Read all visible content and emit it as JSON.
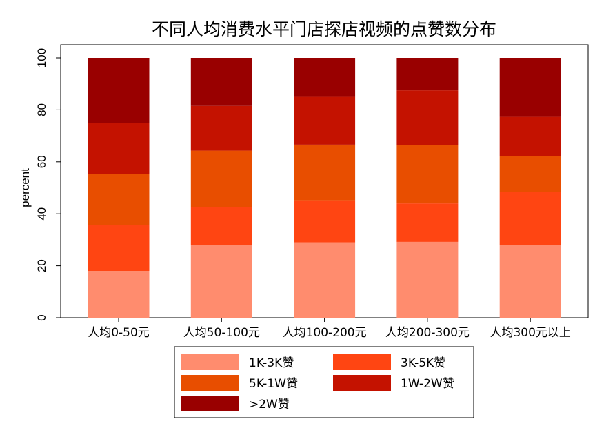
{
  "chart_data": {
    "type": "bar",
    "stacked": true,
    "title": "不同人均消费水平门店探店视频的点赞数分布",
    "ylabel": "percent",
    "xlabel": "",
    "ylim": [
      0,
      100
    ],
    "yticks": [
      "0",
      "20",
      "40",
      "60",
      "80",
      "100"
    ],
    "categories": [
      "人均0-50元",
      "人均50-100元",
      "人均100-200元",
      "人均200-300元",
      "人均300元以上"
    ],
    "series": [
      {
        "name": "1K-3K赞",
        "color": "#FF8C6E",
        "values": [
          18,
          28,
          29,
          29.2,
          28
        ]
      },
      {
        "name": "3K-5K赞",
        "color": "#FF4512",
        "values": [
          17.8,
          14.5,
          16.2,
          14.8,
          20.5
        ]
      },
      {
        "name": "5K-1W赞",
        "color": "#E84E00",
        "values": [
          19.5,
          21.8,
          21.4,
          22.4,
          13.8
        ]
      },
      {
        "name": "1W-2W赞",
        "color": "#C41200",
        "values": [
          19.7,
          17.2,
          18.4,
          21.1,
          15
        ]
      },
      {
        "name": ">2W赞",
        "color": "#990000",
        "values": [
          25,
          18.5,
          15,
          12.5,
          22.7
        ]
      }
    ],
    "legend": {
      "position": "bottom",
      "columns": 2
    }
  }
}
